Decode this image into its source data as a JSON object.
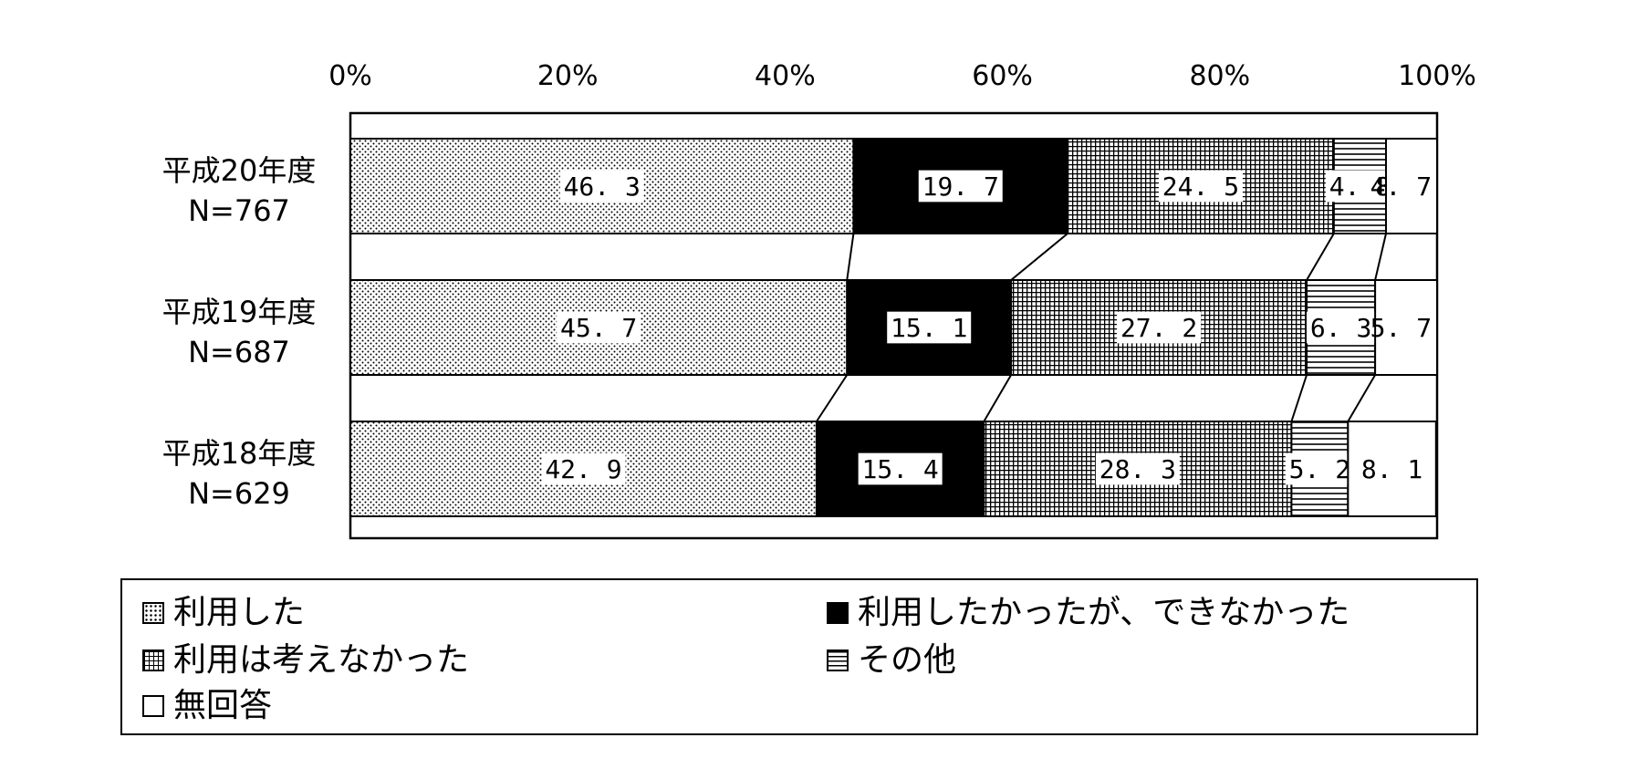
{
  "chart_data": {
    "type": "bar",
    "orientation": "horizontal",
    "stacked": true,
    "percent": true,
    "xaxis": {
      "ticks": [
        "0%",
        "20%",
        "40%",
        "60%",
        "80%",
        "100%"
      ],
      "range": [
        0,
        100
      ]
    },
    "categories": [
      {
        "line1": "平成20年度",
        "line2": "N=767"
      },
      {
        "line1": "平成19年度",
        "line2": "N=687"
      },
      {
        "line1": "平成18年度",
        "line2": "N=629"
      }
    ],
    "series": [
      {
        "name": "利用した",
        "pattern": "dots",
        "values": [
          46.3,
          45.7,
          42.9
        ],
        "labels": [
          "46. 3",
          "45. 7",
          "42. 9"
        ]
      },
      {
        "name": "利用したかったが、できなかった",
        "pattern": "solid",
        "values": [
          19.7,
          15.1,
          15.4
        ],
        "labels": [
          "19. 7",
          "15. 1",
          "15. 4"
        ]
      },
      {
        "name": "利用は考えなかった",
        "pattern": "grid",
        "values": [
          24.5,
          27.2,
          28.3
        ],
        "labels": [
          "24. 5",
          "27. 2",
          "28. 3"
        ]
      },
      {
        "name": "その他",
        "pattern": "hlines",
        "values": [
          4.8,
          6.3,
          5.2
        ],
        "labels": [
          "4. 8",
          "6. 3",
          "5. 2"
        ]
      },
      {
        "name": "無回答",
        "pattern": "white",
        "values": [
          4.7,
          5.7,
          8.1
        ],
        "labels": [
          "4. 7",
          "5. 7",
          "8. 1"
        ]
      }
    ],
    "connector_lines": true,
    "legend_position": "bottom",
    "colors": {
      "bar_dark": "#000000",
      "bar_light": "#ffffff",
      "ink": "#000000"
    }
  }
}
